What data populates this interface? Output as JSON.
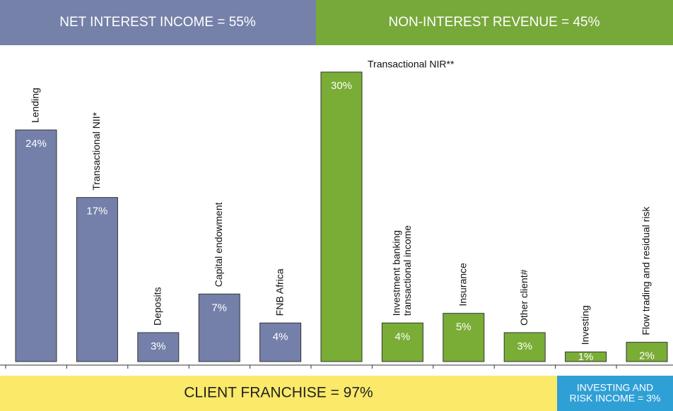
{
  "chart_data": {
    "type": "bar",
    "header_left": "NET INTEREST INCOME = 55%",
    "header_right": "NON-INTEREST REVENUE = 45%",
    "footer_left": "CLIENT FRANCHISE = 97%",
    "footer_right": "INVESTING AND\nRISK INCOME = 3%",
    "categories": [
      "Lending",
      "Transactional NII*",
      "Deposits",
      "Capital endowment",
      "FNB Africa",
      "Transactional NIR**",
      "Investment banking\ntransactional income",
      "Insurance",
      "Other client#",
      "Investing",
      "Flow trading and residual risk"
    ],
    "values": [
      24,
      17,
      3,
      7,
      4,
      30,
      4,
      5,
      3,
      1,
      2
    ],
    "value_labels": [
      "24%",
      "17%",
      "3%",
      "7%",
      "4%",
      "30%",
      "4%",
      "5%",
      "3%",
      "1%",
      "2%"
    ],
    "colors": [
      "#7480a9",
      "#7480a9",
      "#7480a9",
      "#7480a9",
      "#7480a9",
      "#79ad35",
      "#79ad35",
      "#79ad35",
      "#79ad35",
      "#79ad35",
      "#79ad35"
    ]
  }
}
